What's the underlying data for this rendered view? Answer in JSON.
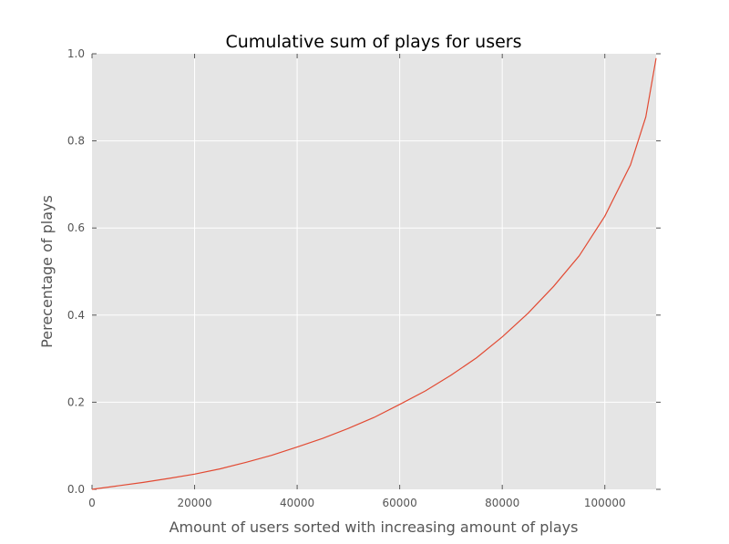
{
  "chart_data": {
    "type": "line",
    "title": "Cumulative sum of plays for users",
    "xlabel": "Amount of users sorted with increasing amount of plays",
    "ylabel": "Perecentage of plays",
    "xlim": [
      0,
      110000
    ],
    "ylim": [
      0.0,
      1.0
    ],
    "grid": true,
    "x_ticks": [
      0,
      20000,
      40000,
      60000,
      80000,
      100000
    ],
    "x_tick_labels": [
      "0",
      "20000",
      "40000",
      "60000",
      "80000",
      "100000"
    ],
    "y_ticks": [
      0.0,
      0.2,
      0.4,
      0.6,
      0.8,
      1.0
    ],
    "y_tick_labels": [
      "0.0",
      "0.2",
      "0.4",
      "0.6",
      "0.8",
      "1.0"
    ],
    "series": [
      {
        "color": "#e24a33",
        "x": [
          0,
          5000,
          10000,
          15000,
          20000,
          25000,
          30000,
          35000,
          40000,
          45000,
          50000,
          55000,
          60000,
          65000,
          70000,
          75000,
          80000,
          85000,
          90000,
          95000,
          100000,
          105000,
          108000,
          110000
        ],
        "y": [
          0.0,
          0.008,
          0.016,
          0.025,
          0.035,
          0.047,
          0.062,
          0.078,
          0.097,
          0.117,
          0.14,
          0.165,
          0.195,
          0.226,
          0.262,
          0.302,
          0.35,
          0.404,
          0.466,
          0.536,
          0.627,
          0.745,
          0.855,
          0.99
        ]
      }
    ]
  }
}
